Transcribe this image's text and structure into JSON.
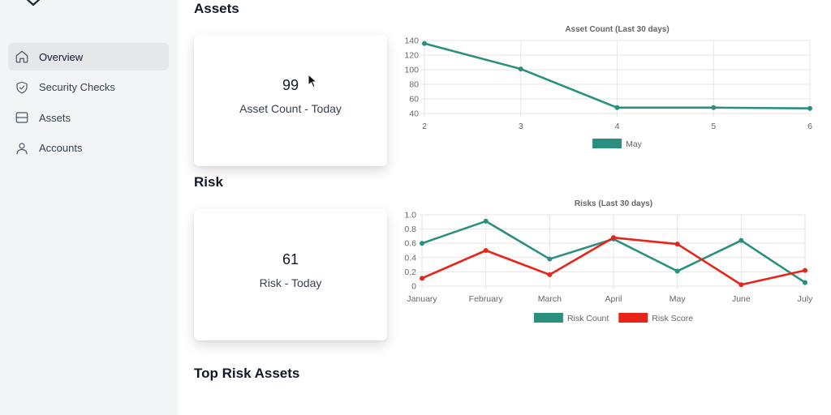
{
  "nav": {
    "items": [
      {
        "label": "Overview",
        "icon": "home-icon",
        "active": true
      },
      {
        "label": "Security Checks",
        "icon": "shield-check-icon",
        "active": false
      },
      {
        "label": "Assets",
        "icon": "server-icon",
        "active": false
      },
      {
        "label": "Accounts",
        "icon": "user-icon",
        "active": false
      }
    ]
  },
  "sections": {
    "assets_title": "Assets",
    "risk_title": "Risk",
    "top_risk_title": "Top Risk Assets"
  },
  "cards": {
    "asset_count": {
      "value": "99",
      "caption": "Asset Count - Today"
    },
    "risk": {
      "value": "61",
      "caption": "Risk - Today"
    }
  },
  "colors": {
    "teal": "#2a8f7f",
    "red": "#e8231a",
    "grid": "#e6e6e6",
    "axis_text": "#666666"
  },
  "chart_data": [
    {
      "type": "line",
      "title": "Asset Count (Last 30 days)",
      "x": [
        "2",
        "3",
        "4",
        "5",
        "6"
      ],
      "ylim": [
        40,
        140
      ],
      "yticks": [
        40,
        60,
        80,
        100,
        120,
        140
      ],
      "series": [
        {
          "name": "May",
          "color": "#2a8f7f",
          "values": [
            136,
            101,
            48,
            48,
            47
          ]
        }
      ],
      "legend": "bottom"
    },
    {
      "type": "line",
      "title": "Risks (Last 30 days)",
      "x": [
        "January",
        "February",
        "March",
        "April",
        "May",
        "June",
        "July"
      ],
      "ylim": [
        0,
        1.0
      ],
      "yticks": [
        "0",
        "0.2",
        "0.4",
        "0.6",
        "0.8",
        "1.0"
      ],
      "series": [
        {
          "name": "Risk Count",
          "color": "#2a8f7f",
          "values": [
            0.6,
            0.91,
            0.38,
            0.66,
            0.21,
            0.64,
            0.05
          ]
        },
        {
          "name": "Risk Score",
          "color": "#e8231a",
          "values": [
            0.11,
            0.5,
            0.16,
            0.68,
            0.59,
            0.02,
            0.22
          ]
        }
      ],
      "legend": "bottom"
    }
  ]
}
